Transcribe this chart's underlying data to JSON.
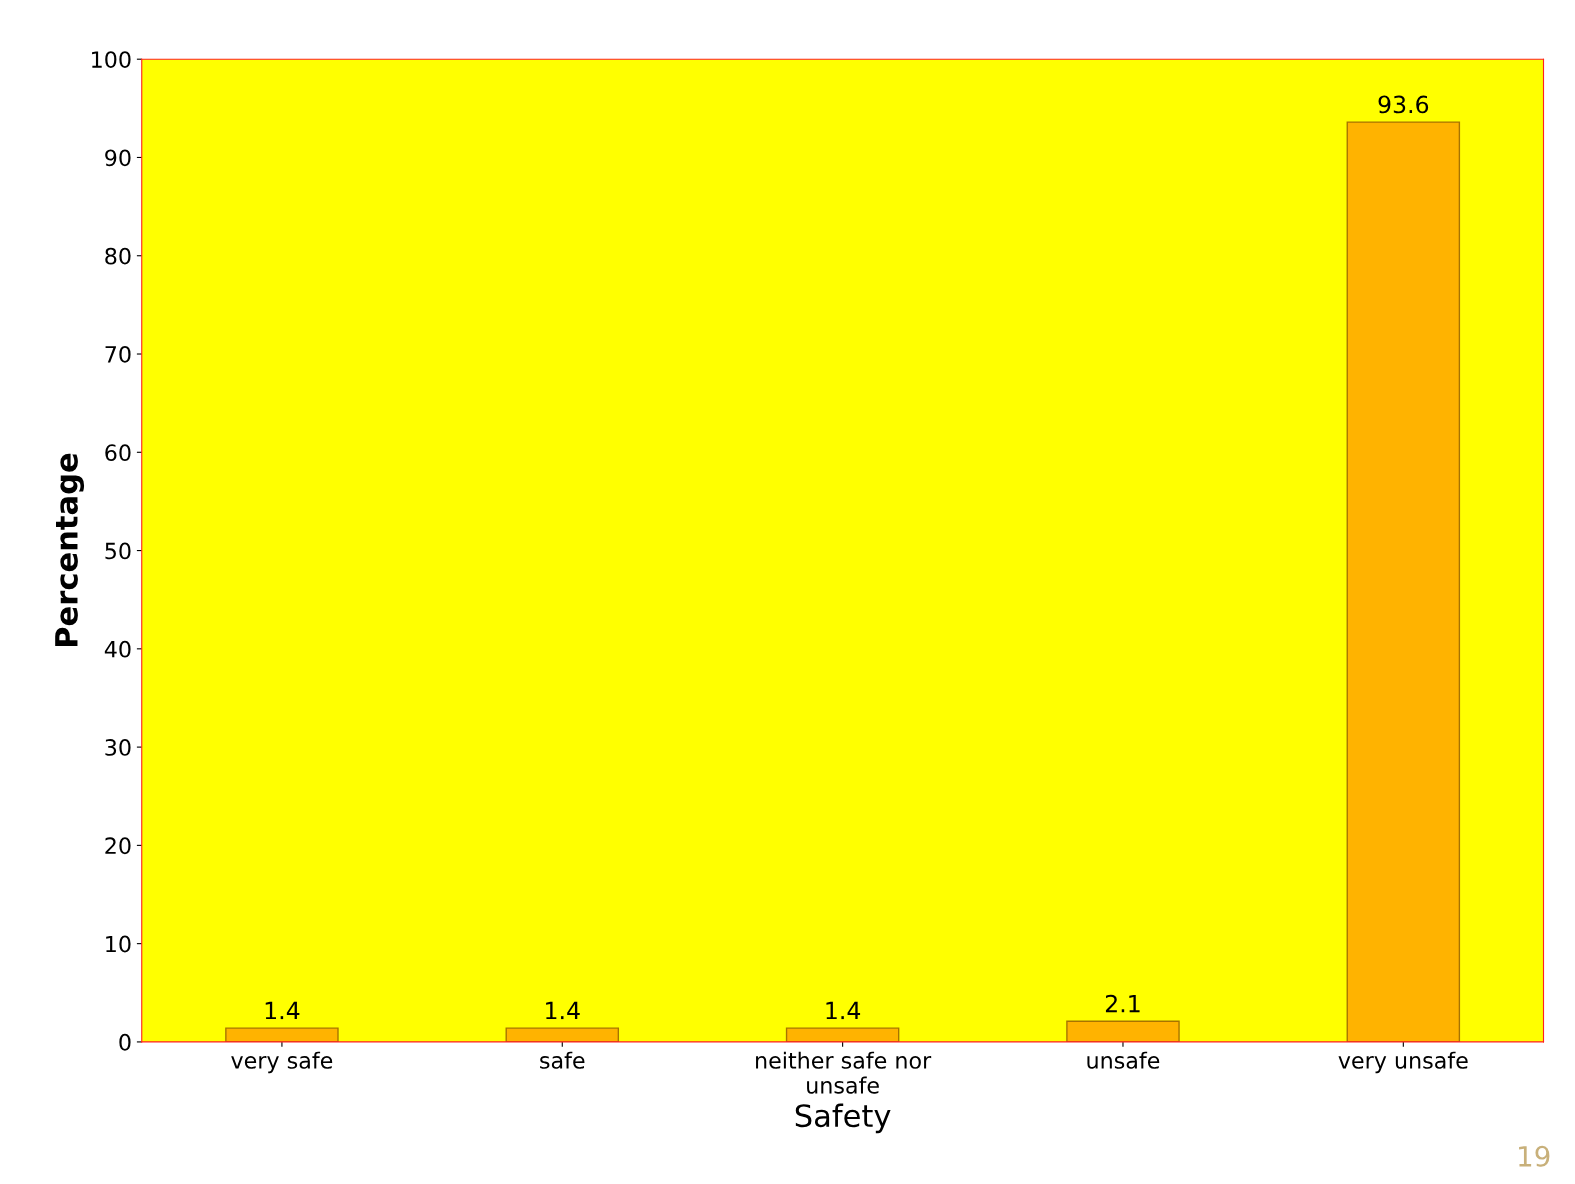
{
  "chart_data": {
    "type": "bar",
    "xlabel": "Safety",
    "ylabel": "Percentage",
    "categories": [
      "very safe",
      "safe",
      "neither safe nor\nunsafe",
      "unsafe",
      "very unsafe"
    ],
    "values": [
      1.4,
      1.4,
      1.4,
      2.1,
      93.6
    ],
    "color": "#ffb300",
    "ylim": [
      0,
      100
    ],
    "yticks": [
      0,
      10,
      20,
      30,
      40,
      50,
      60,
      70,
      80,
      90,
      100
    ],
    "grid": false,
    "data_labels": true,
    "annotations": [
      "19"
    ]
  }
}
